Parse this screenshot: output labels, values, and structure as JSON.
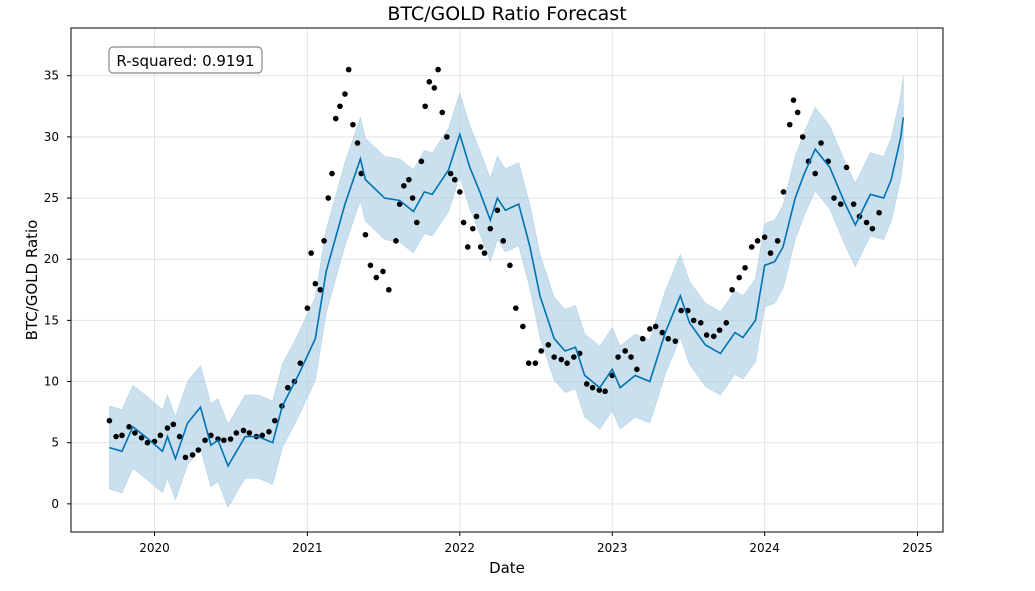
{
  "chart_data": {
    "type": "line",
    "title": "BTC/GOLD Ratio Forecast",
    "xlabel": "Date",
    "ylabel": "BTC/GOLD Ratio",
    "annotation": "R-squared: 0.9191",
    "xlim": [
      "2019-06-15",
      "2025-03-03"
    ],
    "ylim": [
      -2.3,
      38.9
    ],
    "x_ticks": [
      "2020",
      "2021",
      "2022",
      "2023",
      "2024",
      "2025"
    ],
    "y_ticks": [
      "0",
      "5",
      "10",
      "15",
      "20",
      "25",
      "30",
      "35"
    ],
    "grid": true,
    "colors": {
      "forecast": "#0072b2",
      "interval": "#a6cbe3",
      "observed": "#000000"
    },
    "interval_halfwidth": 3.4,
    "forecast": {
      "x": [
        "2019-09-15",
        "2019-10-15",
        "2019-11-10",
        "2019-12-10",
        "2020-01-20",
        "2020-02-01",
        "2020-02-20",
        "2020-03-20",
        "2020-04-20",
        "2020-05-15",
        "2020-06-01",
        "2020-06-25",
        "2020-08-05",
        "2020-09-05",
        "2020-10-10",
        "2020-11-02",
        "2020-12-10",
        "2021-01-20",
        "2021-02-15",
        "2021-04-01",
        "2021-05-08",
        "2021-05-20",
        "2021-07-05",
        "2021-08-10",
        "2021-09-12",
        "2021-10-08",
        "2021-10-27",
        "2021-12-05",
        "2022-01-01",
        "2022-01-25",
        "2022-02-18",
        "2022-03-15",
        "2022-04-01",
        "2022-04-20",
        "2022-05-22",
        "2022-06-18",
        "2022-07-12",
        "2022-08-15",
        "2022-09-10",
        "2022-10-05",
        "2022-10-27",
        "2022-12-02",
        "2023-01-01",
        "2023-01-20",
        "2023-02-25",
        "2023-04-01",
        "2023-05-08",
        "2023-06-13",
        "2023-07-05",
        "2023-08-12",
        "2023-09-17",
        "2023-10-22",
        "2023-11-10",
        "2023-12-10",
        "2024-01-01",
        "2024-01-25",
        "2024-02-14",
        "2024-03-14",
        "2024-04-05",
        "2024-05-01",
        "2024-06-05",
        "2024-07-12",
        "2024-08-05",
        "2024-09-10",
        "2024-10-12",
        "2024-10-30",
        "2024-11-22",
        "2024-11-28"
      ],
      "y": [
        4.6,
        4.3,
        6.3,
        5.5,
        4.3,
        5.5,
        3.7,
        6.6,
        7.9,
        4.8,
        5.2,
        3.1,
        5.5,
        5.5,
        5.0,
        8.0,
        10.5,
        13.5,
        19.0,
        24.5,
        28.2,
        26.5,
        25.0,
        24.8,
        23.9,
        25.5,
        25.3,
        27.3,
        30.2,
        27.5,
        25.5,
        23.2,
        25.0,
        24.0,
        24.5,
        21.0,
        17.0,
        13.5,
        12.5,
        12.8,
        10.5,
        9.5,
        11.0,
        9.5,
        10.5,
        10.0,
        14.0,
        17.0,
        14.8,
        13.0,
        12.3,
        14.0,
        13.6,
        15.0,
        19.5,
        19.8,
        21.0,
        25.0,
        27.0,
        29.0,
        27.5,
        24.5,
        22.8,
        25.3,
        25.0,
        26.5,
        30.0,
        31.6
      ]
    },
    "observed": {
      "x": [
        "2019-09-15",
        "2019-10-01",
        "2019-10-15",
        "2019-11-01",
        "2019-11-15",
        "2019-12-01",
        "2019-12-15",
        "2020-01-01",
        "2020-01-15",
        "2020-02-01",
        "2020-02-15",
        "2020-03-01",
        "2020-03-15",
        "2020-04-01",
        "2020-04-15",
        "2020-05-01",
        "2020-05-15",
        "2020-06-01",
        "2020-06-15",
        "2020-07-01",
        "2020-07-15",
        "2020-08-01",
        "2020-08-15",
        "2020-09-01",
        "2020-09-15",
        "2020-10-01",
        "2020-10-15",
        "2020-11-01",
        "2020-11-15",
        "2020-12-01",
        "2020-12-15",
        "2021-01-01",
        "2021-01-10",
        "2021-01-20",
        "2021-02-01",
        "2021-02-10",
        "2021-02-20",
        "2021-03-01",
        "2021-03-10",
        "2021-03-20",
        "2021-04-01",
        "2021-04-10",
        "2021-04-20",
        "2021-05-01",
        "2021-05-10",
        "2021-05-20",
        "2021-06-01",
        "2021-06-15",
        "2021-07-01",
        "2021-07-15",
        "2021-08-01",
        "2021-08-10",
        "2021-08-20",
        "2021-09-01",
        "2021-09-10",
        "2021-09-20",
        "2021-10-01",
        "2021-10-10",
        "2021-10-20",
        "2021-11-01",
        "2021-11-10",
        "2021-11-20",
        "2021-12-01",
        "2021-12-10",
        "2021-12-20",
        "2022-01-01",
        "2022-01-10",
        "2022-01-20",
        "2022-02-01",
        "2022-02-10",
        "2022-02-20",
        "2022-03-01",
        "2022-03-15",
        "2022-04-01",
        "2022-04-15",
        "2022-05-01",
        "2022-05-15",
        "2022-06-01",
        "2022-06-15",
        "2022-07-01",
        "2022-07-15",
        "2022-08-01",
        "2022-08-15",
        "2022-09-01",
        "2022-09-15",
        "2022-10-01",
        "2022-10-15",
        "2022-11-01",
        "2022-11-15",
        "2022-12-01",
        "2022-12-15",
        "2023-01-01",
        "2023-01-15",
        "2023-02-01",
        "2023-02-15",
        "2023-03-01",
        "2023-03-15",
        "2023-04-01",
        "2023-04-15",
        "2023-05-01",
        "2023-05-15",
        "2023-06-01",
        "2023-06-15",
        "2023-07-01",
        "2023-07-15",
        "2023-08-01",
        "2023-08-15",
        "2023-09-01",
        "2023-09-15",
        "2023-10-01",
        "2023-10-15",
        "2023-11-01",
        "2023-11-15",
        "2023-12-01",
        "2023-12-15",
        "2024-01-01",
        "2024-01-15",
        "2024-02-01",
        "2024-02-15",
        "2024-03-01",
        "2024-03-10",
        "2024-03-20",
        "2024-04-01",
        "2024-04-15",
        "2024-05-01",
        "2024-05-15",
        "2024-06-01",
        "2024-06-15",
        "2024-07-01",
        "2024-07-15",
        "2024-08-01",
        "2024-08-15",
        "2024-09-01",
        "2024-09-15",
        "2024-10-01"
      ],
      "y": [
        6.8,
        5.5,
        5.6,
        6.3,
        5.8,
        5.4,
        5.0,
        5.1,
        5.6,
        6.2,
        6.5,
        5.5,
        3.8,
        4.0,
        4.4,
        5.2,
        5.6,
        5.3,
        5.2,
        5.3,
        5.8,
        6.0,
        5.8,
        5.5,
        5.6,
        5.9,
        6.8,
        8.0,
        9.5,
        10.0,
        11.5,
        16.0,
        20.5,
        18.0,
        17.5,
        21.5,
        25.0,
        27.0,
        31.5,
        32.5,
        33.5,
        35.5,
        31.0,
        29.5,
        27.0,
        22.0,
        19.5,
        18.5,
        19.0,
        17.5,
        21.5,
        24.5,
        26.0,
        26.5,
        25.0,
        23.0,
        28.0,
        32.5,
        34.5,
        34.0,
        35.5,
        32.0,
        30.0,
        27.0,
        26.5,
        25.5,
        23.0,
        21.0,
        22.5,
        23.5,
        21.0,
        20.5,
        22.5,
        24.0,
        21.5,
        19.5,
        16.0,
        14.5,
        11.5,
        11.5,
        12.5,
        13.0,
        12.0,
        11.8,
        11.5,
        12.0,
        12.3,
        9.8,
        9.5,
        9.3,
        9.2,
        10.5,
        12.0,
        12.5,
        12.0,
        11.0,
        13.5,
        14.3,
        14.5,
        14.0,
        13.5,
        13.3,
        15.8,
        15.8,
        15.0,
        14.8,
        13.8,
        13.7,
        14.2,
        14.8,
        17.5,
        18.5,
        19.3,
        21.0,
        21.5,
        21.8,
        20.5,
        21.5,
        25.5,
        31.0,
        33.0,
        32.0,
        30.0,
        28.0,
        27.0,
        29.5,
        28.0,
        25.0,
        24.5,
        27.5,
        24.5,
        23.5,
        23.0,
        22.5,
        23.8
      ]
    }
  }
}
